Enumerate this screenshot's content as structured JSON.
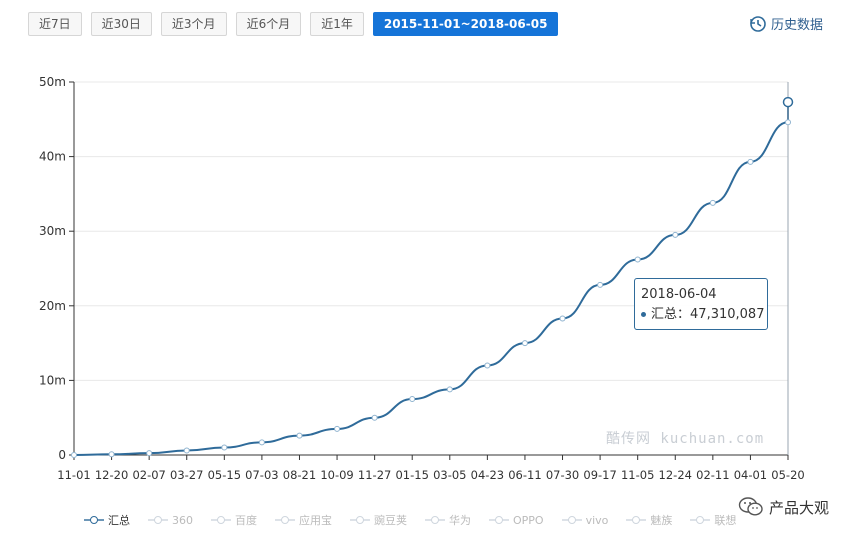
{
  "toolbar": {
    "buttons": [
      {
        "label": "近7日",
        "active": false
      },
      {
        "label": "近30日",
        "active": false
      },
      {
        "label": "近3个月",
        "active": false
      },
      {
        "label": "近6个月",
        "active": false
      },
      {
        "label": "近1年",
        "active": false
      },
      {
        "label": "2015-11-01~2018-06-05",
        "active": true
      }
    ],
    "history_label": "历史数据"
  },
  "colors": {
    "series": "#2f6b9a",
    "active_button": "#1574d8",
    "grid": "#e8e8e8"
  },
  "tooltip": {
    "date": "2018-06-04",
    "series": "汇总",
    "value_text": "47,310,087"
  },
  "watermark": "酷传网 kuchuan.com",
  "brand": {
    "name": "产品大观",
    "icon": "wechat-icon"
  },
  "legend": [
    {
      "label": "汇总",
      "active": true
    },
    {
      "label": "360",
      "active": false
    },
    {
      "label": "百度",
      "active": false
    },
    {
      "label": "应用宝",
      "active": false
    },
    {
      "label": "豌豆荚",
      "active": false
    },
    {
      "label": "华为",
      "active": false
    },
    {
      "label": "OPPO",
      "active": false
    },
    {
      "label": "vivo",
      "active": false
    },
    {
      "label": "魅族",
      "active": false
    },
    {
      "label": "联想",
      "active": false
    }
  ],
  "chart_data": {
    "type": "line",
    "xlabel": "",
    "ylabel": "",
    "grid": true,
    "legend_position": "bottom",
    "ylim": [
      0,
      50
    ],
    "y_ticks": [
      "0",
      "10m",
      "20m",
      "30m",
      "40m",
      "50m"
    ],
    "x_tick_labels": [
      "11-01",
      "12-20",
      "02-07",
      "03-27",
      "05-15",
      "07-03",
      "08-21",
      "10-09",
      "11-27",
      "01-15",
      "03-05",
      "04-23",
      "06-11",
      "07-30",
      "09-17",
      "11-05",
      "12-24",
      "02-11",
      "04-01",
      "05-20"
    ],
    "series": [
      {
        "name": "汇总",
        "unit": "m",
        "x": [
          "11-01",
          "12-20",
          "02-07",
          "03-27",
          "05-15",
          "07-03",
          "08-21",
          "10-09",
          "11-27",
          "01-15",
          "03-05",
          "04-23",
          "06-11",
          "07-30",
          "09-17",
          "11-05",
          "12-24",
          "02-11",
          "04-01",
          "05-20",
          "2018-06-04"
        ],
        "values": [
          0,
          0.1,
          0.25,
          0.6,
          1.0,
          1.7,
          2.6,
          3.5,
          5.0,
          7.5,
          8.8,
          12.0,
          15.0,
          18.3,
          22.8,
          26.2,
          29.5,
          33.8,
          39.3,
          44.6,
          47.31
        ]
      }
    ]
  }
}
